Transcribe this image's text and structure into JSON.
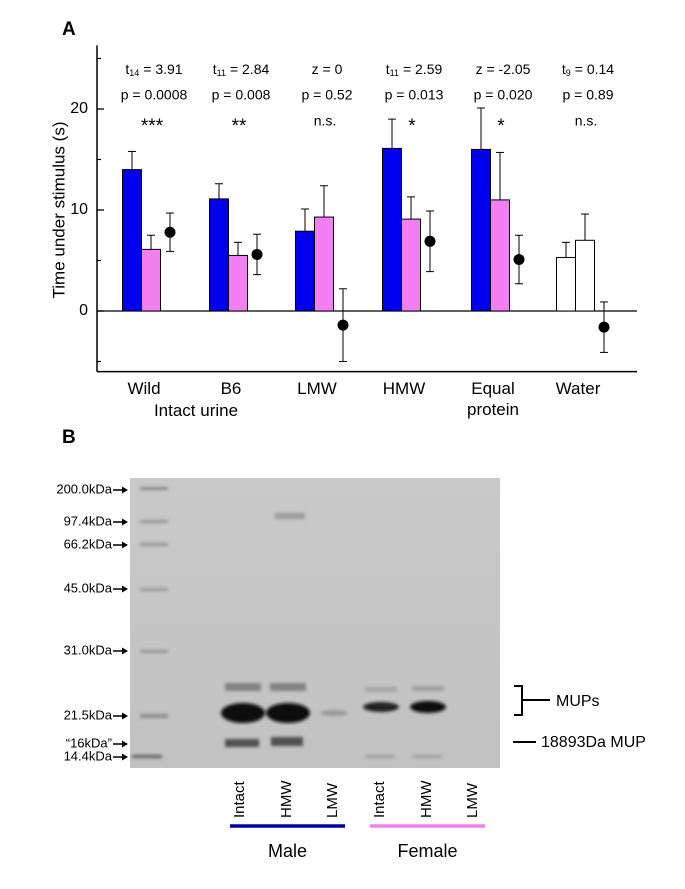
{
  "panels": [
    "A",
    "B"
  ],
  "chart_data": {
    "type": "bar",
    "ylabel": "Time under stimulus (s)",
    "categories": [
      "Wild",
      "B6",
      "LMW",
      "HMW",
      "Equal protein",
      "Water"
    ],
    "group_label": "Intact urine",
    "ylim": [
      -6,
      26
    ],
    "yticks": [
      0,
      10,
      20
    ],
    "yminor": [
      -5,
      5,
      15,
      25
    ],
    "series": [
      {
        "type": "bar",
        "colors": [
          "#0000ee",
          "#0000ee",
          "#0000ee",
          "#0000ee",
          "#0000ee",
          "#ffffff"
        ],
        "values": [
          14.0,
          11.1,
          7.9,
          16.1,
          16.0,
          5.3
        ],
        "errors": [
          1.8,
          1.5,
          2.2,
          2.9,
          4.1,
          1.5
        ]
      },
      {
        "type": "bar",
        "colors": [
          "#f27ef2",
          "#f27ef2",
          "#f27ef2",
          "#f27ef2",
          "#f27ef2",
          "#ffffff"
        ],
        "values": [
          6.1,
          5.5,
          9.3,
          9.1,
          11.0,
          7.0
        ],
        "errors": [
          1.4,
          1.3,
          3.1,
          2.2,
          4.7,
          2.6
        ]
      },
      {
        "type": "point",
        "color": "#000000",
        "values": [
          7.8,
          5.6,
          -1.4,
          6.9,
          5.1,
          -1.6
        ],
        "errors": [
          1.9,
          2.0,
          3.6,
          3.0,
          2.4,
          2.5
        ]
      }
    ],
    "stats": [
      {
        "symbol": "t",
        "sub": "14",
        "text": "= 3.91",
        "p": "p = 0.0008"
      },
      {
        "symbol": "t",
        "sub": "11",
        "text": "= 2.84",
        "p": "p = 0.008"
      },
      {
        "symbol": "z = 0",
        "p": "p = 0.52"
      },
      {
        "symbol": "t",
        "sub": "11",
        "text": "= 2.59",
        "p": "p = 0.013"
      },
      {
        "symbol": "z = -2.05",
        "p": "p = 0.020"
      },
      {
        "symbol": "t",
        "sub": "9",
        "text": "= 0.14",
        "p": "p = 0.89"
      }
    ],
    "significance": [
      "***",
      "**",
      "n.s.",
      "*",
      "*",
      "n.s."
    ]
  },
  "gel": {
    "markers": [
      "200.0kDa",
      "97.4kDa",
      "66.2kDa",
      "45.0kDa",
      "31.0kDa",
      "21.5kDa",
      "“16kDa”",
      "14.4kDa"
    ],
    "band_labels": [
      "MUPs",
      "18893Da MUP"
    ],
    "lanes": [
      "Intact",
      "HMW",
      "LMW",
      "Intact",
      "HMW",
      "LMW"
    ],
    "groups": [
      {
        "name": "Male",
        "color": "#0000aa"
      },
      {
        "name": "Female",
        "color": "#ee82ee"
      }
    ]
  }
}
